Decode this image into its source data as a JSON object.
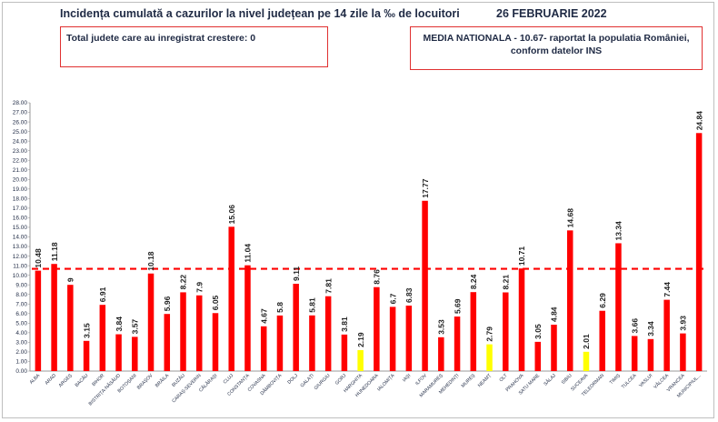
{
  "header": {
    "title": "Incidența cumulată a cazurilor la nivel județean pe 14 zile la ‰ de locuitori",
    "date": "26 FEBRUARIE 2022"
  },
  "info_boxes": {
    "left": "Total judete care au inregistrat crestere: 0",
    "right": "MEDIA NATIONALA - 10.67-  raportat la populatia României, conform datelor INS"
  },
  "chart_data": {
    "type": "bar",
    "title": "Incidența cumulată a cazurilor la nivel județean pe 14 zile la ‰ de locuitori",
    "categories": [
      "ALBA",
      "ARAD",
      "ARGEȘ",
      "BACĂU",
      "BIHOR",
      "BISTRIȚA-NĂSĂUD",
      "BOTOȘANI",
      "BRAȘOV",
      "BRĂILA",
      "BUZĂU",
      "CARAȘ-SEVERIN",
      "CĂLĂRAȘI",
      "CLUJ",
      "CONSTANȚA",
      "COVASNA",
      "DÂMBOVIȚA",
      "DOLJ",
      "GALAȚI",
      "GIURGIU",
      "GORJ",
      "HARGHITA",
      "HUNEDOARA",
      "IALOMIȚA",
      "IAȘI",
      "ILFOV",
      "MARAMUREȘ",
      "MEHEDINȚI",
      "MUREȘ",
      "NEAMȚ",
      "OLT",
      "PRAHOVA",
      "SATU MARE",
      "SĂLAJ",
      "SIBIU",
      "SUCEAVA",
      "TELEORMAN",
      "TIMIȘ",
      "TULCEA",
      "VASLUI",
      "VÂLCEA",
      "VRANCEA",
      "MUNICIPIUL..."
    ],
    "values": [
      10.48,
      11.18,
      9,
      3.15,
      6.91,
      3.84,
      3.57,
      10.18,
      5.96,
      8.22,
      7.9,
      6.05,
      15.06,
      11.04,
      4.67,
      5.8,
      9.11,
      5.81,
      7.81,
      3.81,
      2.19,
      8.76,
      6.7,
      6.83,
      17.77,
      3.53,
      5.69,
      8.24,
      2.79,
      8.21,
      10.71,
      3.05,
      4.84,
      14.68,
      2.01,
      6.29,
      13.34,
      3.66,
      3.34,
      7.44,
      3.93,
      24.84
    ],
    "value_labels": [
      "10.48",
      "11.18",
      "9",
      "3.15",
      "6.91",
      "3.84",
      "3.57",
      "10.18",
      "5.96",
      "8.22",
      "7.9",
      "6.05",
      "15.06",
      "11.04",
      "4.67",
      "5.8",
      "9.11",
      "5.81",
      "7.81",
      "3.81",
      "2.19",
      "8.76",
      "6.7",
      "6.83",
      "17.77",
      "3.53",
      "5.69",
      "8.24",
      "2.79",
      "8.21",
      "10.71",
      "3.05",
      "4.84",
      "14.68",
      "2.01",
      "6.29",
      "13.34",
      "3.66",
      "3.34",
      "7.44",
      "3.93",
      "24.84"
    ],
    "highlight_categories": [
      "HARGHITA",
      "NEAMȚ",
      "SUCEAVA"
    ],
    "reference_line": {
      "value": 10.67,
      "style": "dashed"
    },
    "ylim": [
      0,
      28
    ],
    "ytick_step": 1,
    "ytick_labels": [
      "0.00",
      "1.00",
      "2.00",
      "3.00",
      "4.00",
      "5.00",
      "6.00",
      "7.00",
      "8.00",
      "9.00",
      "10.00",
      "11.00",
      "12.00",
      "13.00",
      "14.00",
      "15.00",
      "16.00",
      "17.00",
      "18.00",
      "19.00",
      "20.00",
      "21.00",
      "22.00",
      "23.00",
      "24.00",
      "25.00",
      "26.00",
      "27.00",
      "28.00"
    ],
    "xlabel": "",
    "ylabel": "",
    "grid": false,
    "legend": "none",
    "colors": {
      "bar": "#ff0000",
      "highlight_bar": "#ffff00",
      "reference_line": "#ff0000",
      "text": "#1f2a44",
      "axis": "#999999"
    }
  }
}
